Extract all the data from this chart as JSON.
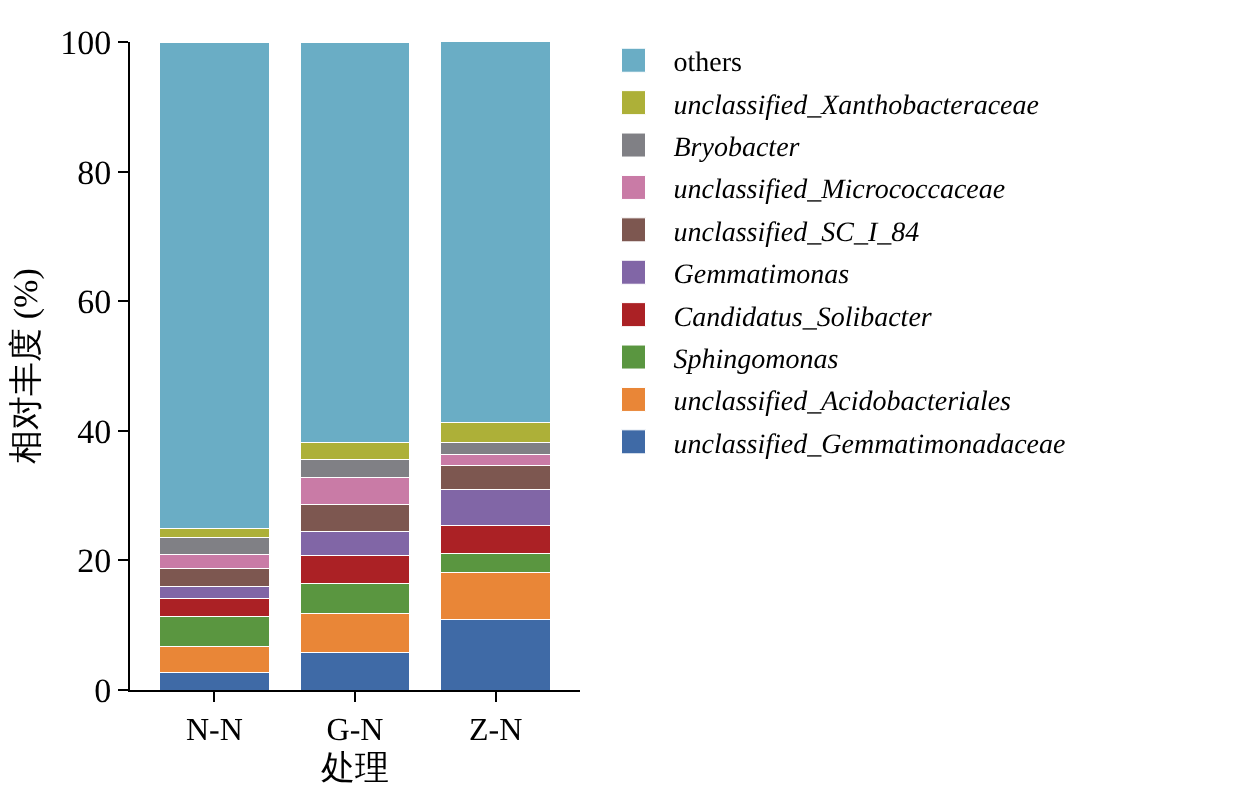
{
  "chart_data": {
    "type": "bar",
    "stacked": true,
    "xlabel": "处理",
    "ylabel": "相对丰度 (%)",
    "categories": [
      "N-N",
      "G-N",
      "Z-N"
    ],
    "series": [
      {
        "name": "unclassified_Gemmatimonadaceae",
        "color": "#3f6aa6",
        "values": [
          2.7,
          5.8,
          10.9
        ]
      },
      {
        "name": "unclassified_Acidobacteriales",
        "color": "#e98637",
        "values": [
          4.0,
          6.0,
          7.2
        ]
      },
      {
        "name": "Sphingomonas",
        "color": "#5a9640",
        "values": [
          4.7,
          4.6,
          2.9
        ]
      },
      {
        "name": "Candidatus_Solibacter",
        "color": "#ab2125",
        "values": [
          2.7,
          4.4,
          4.4
        ]
      },
      {
        "name": "Gemmatimonas",
        "color": "#8166a6",
        "values": [
          1.8,
          3.6,
          5.6
        ]
      },
      {
        "name": "unclassified_SC_I_84",
        "color": "#7d5750",
        "values": [
          2.8,
          4.2,
          3.6
        ]
      },
      {
        "name": "unclassified_Micrococcaceae",
        "color": "#c97ba6",
        "values": [
          2.2,
          4.2,
          1.8
        ]
      },
      {
        "name": "Bryobacter",
        "color": "#808085",
        "values": [
          2.6,
          2.8,
          1.8
        ]
      },
      {
        "name": "unclassified_Xanthobacteraceae",
        "color": "#adb038",
        "values": [
          1.4,
          2.6,
          3.1
        ]
      },
      {
        "name": "others",
        "color": "#6aadc5",
        "values": [
          75.1,
          61.8,
          59.0
        ]
      }
    ],
    "ylim": [
      0,
      100
    ],
    "yticks": [
      0,
      20,
      40,
      60,
      80,
      100
    ],
    "legend": "right"
  }
}
